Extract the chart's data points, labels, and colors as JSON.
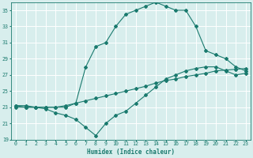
{
  "xlabel": "Humidex (Indice chaleur)",
  "bg_color": "#d8eeed",
  "grid_color": "#ffffff",
  "line_color": "#1a7a6e",
  "xlim": [
    -0.5,
    23.5
  ],
  "ylim": [
    19,
    36
  ],
  "yticks": [
    19,
    21,
    23,
    25,
    27,
    29,
    31,
    33,
    35
  ],
  "xticks": [
    0,
    1,
    2,
    3,
    4,
    5,
    6,
    7,
    8,
    9,
    10,
    11,
    12,
    13,
    14,
    15,
    16,
    17,
    18,
    19,
    20,
    21,
    22,
    23
  ],
  "line1_x": [
    0,
    1,
    2,
    3,
    4,
    5,
    6,
    7,
    8,
    9,
    10,
    11,
    12,
    13,
    14,
    15,
    16,
    17,
    18,
    19,
    20,
    21,
    22,
    23
  ],
  "line1_y": [
    23.2,
    23.2,
    23.0,
    23.0,
    23.0,
    23.0,
    23.5,
    28.0,
    30.5,
    31.0,
    33.0,
    34.5,
    35.0,
    35.5,
    36.0,
    35.5,
    35.0,
    35.0,
    33.0,
    30.0,
    29.5,
    29.0,
    28.0,
    27.5
  ],
  "line2_x": [
    0,
    1,
    2,
    3,
    4,
    5,
    6,
    7,
    8,
    9,
    10,
    11,
    12,
    13,
    14,
    15,
    16,
    17,
    18,
    19,
    20,
    21,
    22,
    23
  ],
  "line2_y": [
    23.0,
    23.0,
    23.0,
    23.0,
    23.0,
    23.2,
    23.5,
    23.8,
    24.1,
    24.4,
    24.7,
    25.0,
    25.3,
    25.6,
    26.0,
    26.3,
    26.5,
    26.8,
    27.0,
    27.2,
    27.5,
    27.6,
    27.7,
    27.8
  ],
  "line3_x": [
    0,
    1,
    2,
    3,
    4,
    5,
    6,
    7,
    8,
    9,
    10,
    11,
    12,
    13,
    14,
    15,
    16,
    17,
    18,
    19,
    20,
    21,
    22,
    23
  ],
  "line3_y": [
    23.2,
    23.0,
    23.0,
    22.8,
    22.3,
    22.0,
    21.5,
    20.5,
    19.5,
    21.0,
    22.0,
    22.5,
    23.5,
    24.5,
    25.5,
    26.5,
    27.0,
    27.5,
    27.8,
    28.0,
    28.0,
    27.5,
    27.0,
    27.2
  ]
}
